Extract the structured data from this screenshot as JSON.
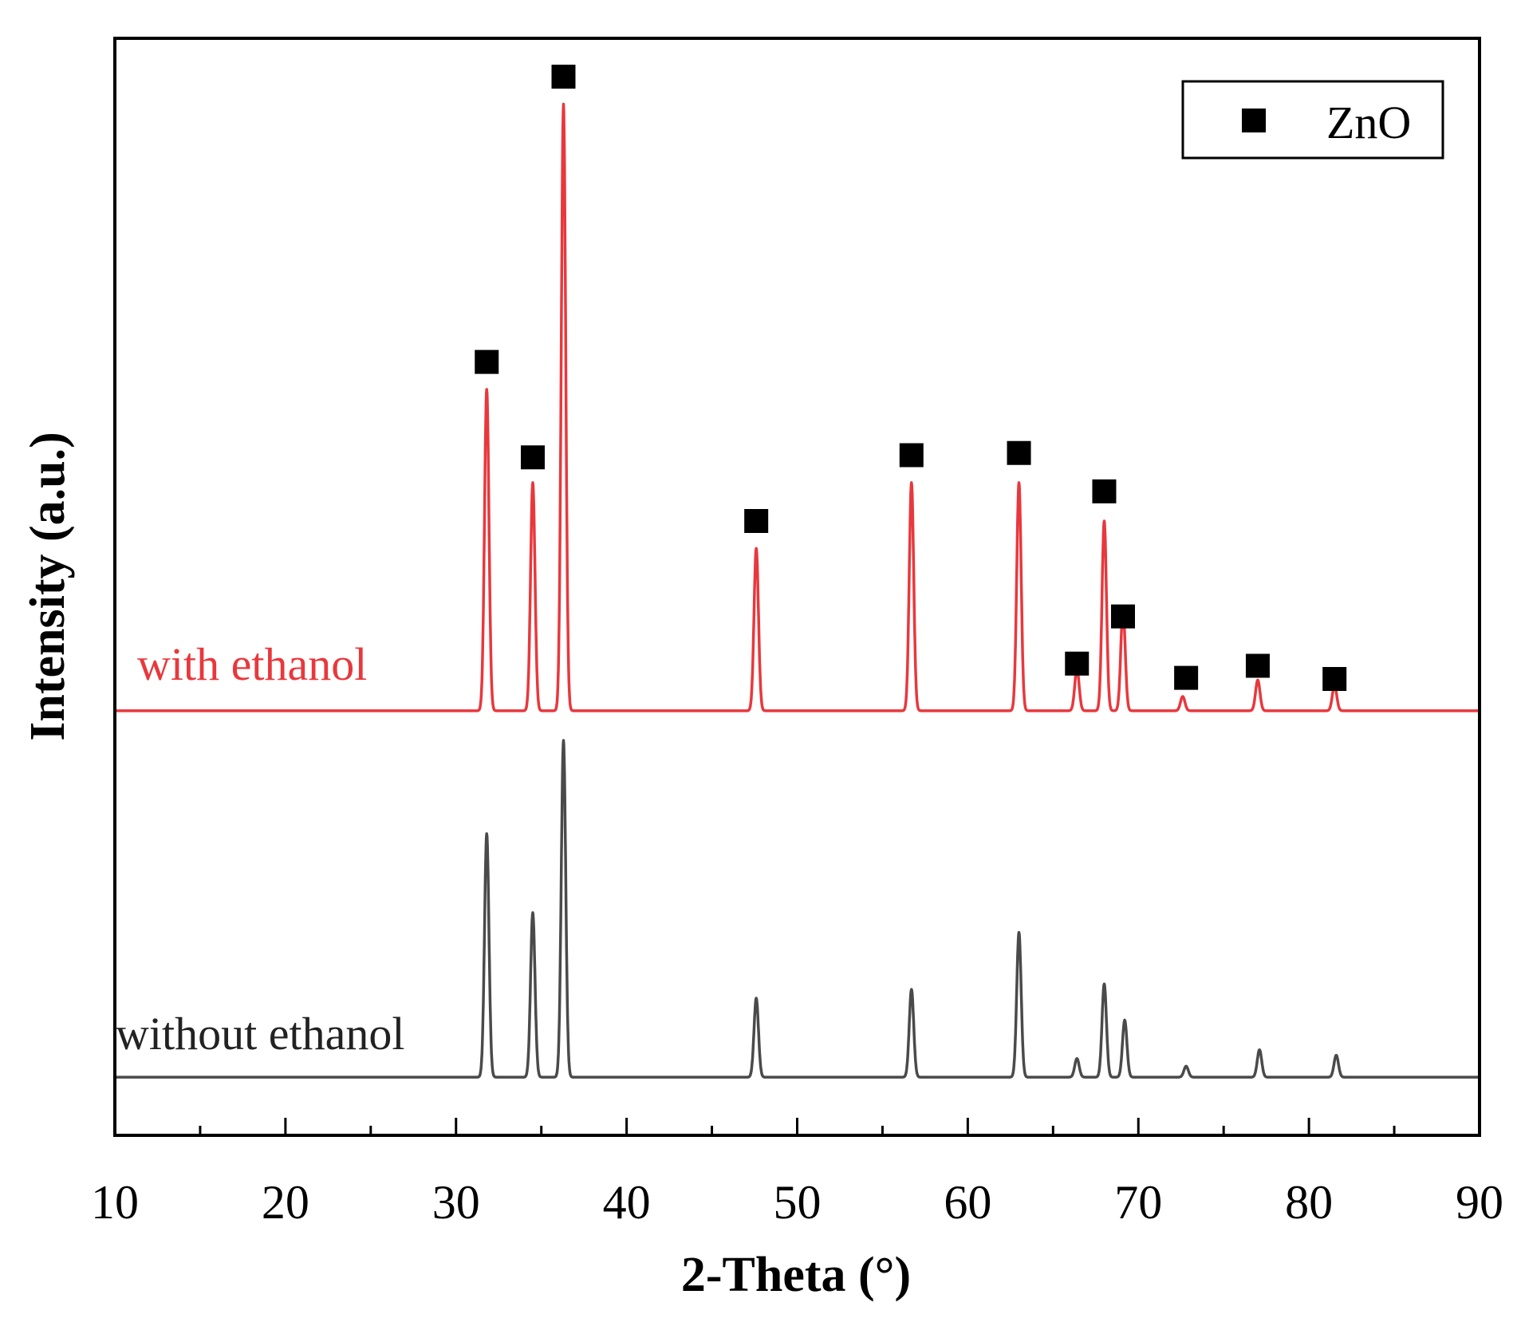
{
  "chart_data": {
    "type": "line",
    "title": "",
    "xlabel": "2-Theta (°)",
    "ylabel": "Intensity (a.u.)",
    "xlim": [
      10,
      90
    ],
    "ylim": [
      0,
      100
    ],
    "xticks": [
      10,
      20,
      30,
      40,
      50,
      60,
      70,
      80,
      90
    ],
    "grid": false,
    "legend": {
      "position": "top-right",
      "entries": [
        {
          "marker": "square",
          "label": "ZnO",
          "color": "#000000"
        }
      ]
    },
    "peak_width_deg": 0.13,
    "series": [
      {
        "name": "with ethanol",
        "color": "#e8383d",
        "baseline": 38.7,
        "peaks": [
          {
            "x": 31.8,
            "y": 68.0
          },
          {
            "x": 34.5,
            "y": 59.5
          },
          {
            "x": 36.3,
            "y": 94.0
          },
          {
            "x": 47.6,
            "y": 53.5
          },
          {
            "x": 56.7,
            "y": 59.5
          },
          {
            "x": 63.0,
            "y": 59.5
          },
          {
            "x": 66.4,
            "y": 42.5
          },
          {
            "x": 68.0,
            "y": 56.0
          },
          {
            "x": 69.1,
            "y": 48.0
          },
          {
            "x": 72.6,
            "y": 40.0
          },
          {
            "x": 77.0,
            "y": 41.5
          },
          {
            "x": 81.5,
            "y": 41.0
          }
        ],
        "markers_x": [
          31.8,
          34.5,
          36.3,
          47.6,
          56.7,
          63.0,
          66.4,
          68.0,
          69.1,
          72.8,
          77.0,
          81.5
        ],
        "markers_y": [
          70.5,
          61.8,
          96.5,
          56.0,
          62.0,
          62.2,
          43.0,
          58.7,
          47.3,
          41.7,
          42.8,
          41.6
        ]
      },
      {
        "name": "without ethanol",
        "color": "#4a4a4a",
        "baseline": 5.3,
        "peaks": [
          {
            "x": 31.8,
            "y": 27.5
          },
          {
            "x": 34.5,
            "y": 20.3
          },
          {
            "x": 36.3,
            "y": 36.0
          },
          {
            "x": 47.6,
            "y": 12.5
          },
          {
            "x": 56.7,
            "y": 13.3
          },
          {
            "x": 63.0,
            "y": 18.5
          },
          {
            "x": 66.4,
            "y": 7.0
          },
          {
            "x": 68.0,
            "y": 13.8
          },
          {
            "x": 69.2,
            "y": 10.5
          },
          {
            "x": 72.8,
            "y": 6.3
          },
          {
            "x": 77.1,
            "y": 7.8
          },
          {
            "x": 81.6,
            "y": 7.3
          }
        ]
      }
    ]
  }
}
